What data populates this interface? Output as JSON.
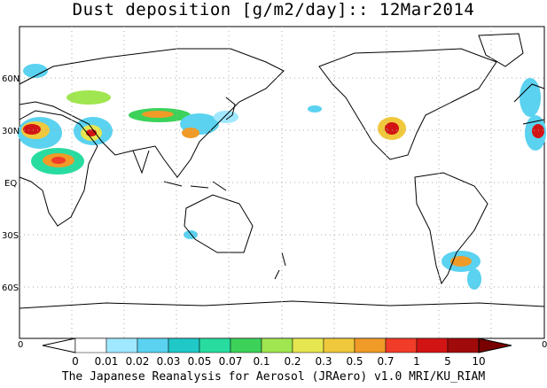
{
  "title": "Dust deposition [g/m2/day]:: 12Mar2014",
  "footer": "The Japanese Reanalysis for Aerosol (JRAero) v1.0 MRI/KU_RIAM",
  "map": {
    "lat_labels": [
      "60N",
      "30N",
      "EQ",
      "30S",
      "60S"
    ],
    "axis_left_label": "0",
    "axis_right_label": "0",
    "grid": true,
    "central_meridian": "180",
    "projection": "cylindrical equidistant"
  },
  "colorbar": {
    "ticks": [
      "0",
      "0.01",
      "0.02",
      "0.03",
      "0.05",
      "0.07",
      "0.1",
      "0.2",
      "0.3",
      "0.5",
      "0.7",
      "1",
      "5",
      "10"
    ],
    "colors": [
      "#ffffff",
      "#ffffff",
      "#a0e8ff",
      "#5ad2f0",
      "#20c8c8",
      "#28dca0",
      "#3cd25a",
      "#a0e650",
      "#e6e650",
      "#f0c83c",
      "#f09a28",
      "#f03c28",
      "#d21414",
      "#a00a0a",
      "#780000"
    ]
  }
}
